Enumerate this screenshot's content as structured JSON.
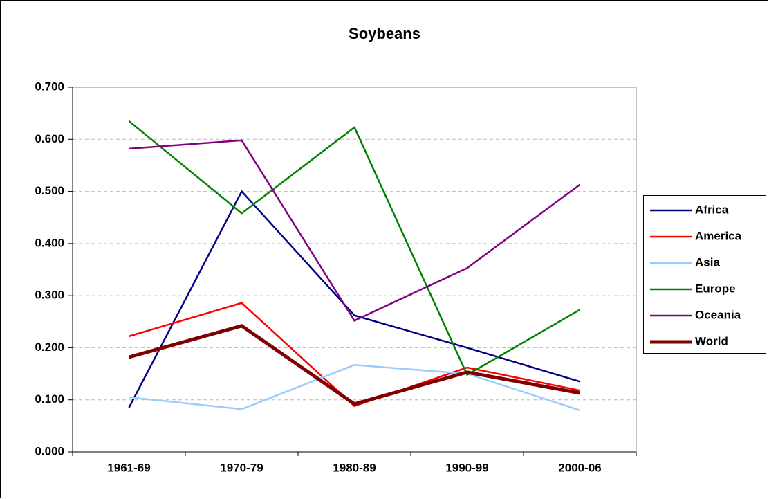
{
  "chart_data": {
    "type": "line",
    "title": "Soybeans",
    "categories": [
      "1961-69",
      "1970-79",
      "1980-89",
      "1990-99",
      "2000-06"
    ],
    "series": [
      {
        "name": "Africa",
        "color": "#000080",
        "line_width": 2.5,
        "values": [
          0.085,
          0.5,
          0.262,
          0.2,
          0.135
        ]
      },
      {
        "name": "America",
        "color": "#ff0000",
        "line_width": 2.5,
        "values": [
          0.222,
          0.286,
          0.088,
          0.162,
          0.118
        ]
      },
      {
        "name": "Asia",
        "color": "#99ccff",
        "line_width": 2.5,
        "values": [
          0.105,
          0.082,
          0.167,
          0.15,
          0.08
        ]
      },
      {
        "name": "Europe",
        "color": "#008000",
        "line_width": 2.5,
        "values": [
          0.635,
          0.458,
          0.623,
          0.148,
          0.273
        ]
      },
      {
        "name": "Oceania",
        "color": "#800080",
        "line_width": 2.5,
        "values": [
          0.582,
          0.598,
          0.252,
          0.353,
          0.513
        ]
      },
      {
        "name": "World",
        "color": "#800000",
        "line_width": 5,
        "values": [
          0.182,
          0.242,
          0.092,
          0.153,
          0.113
        ]
      }
    ],
    "ylim": [
      0,
      0.7
    ],
    "yticks": [
      {
        "value": 0,
        "label": "0.000"
      },
      {
        "value": 0.1,
        "label": "0.100"
      },
      {
        "value": 0.2,
        "label": "0.200"
      },
      {
        "value": 0.3,
        "label": "0.300"
      },
      {
        "value": 0.4,
        "label": "0.400"
      },
      {
        "value": 0.5,
        "label": "0.500"
      },
      {
        "value": 0.6,
        "label": "0.600"
      },
      {
        "value": 0.7,
        "label": "0.700"
      }
    ],
    "grid": true,
    "legend": "right"
  }
}
